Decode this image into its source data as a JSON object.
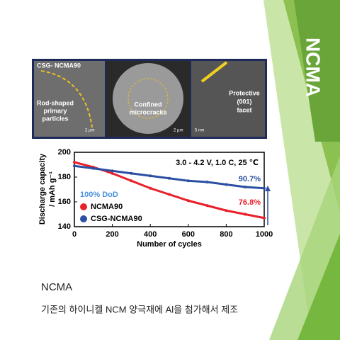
{
  "slide": {
    "side_title": "NCMA",
    "caption_title": "NCMA",
    "caption_text": "기존의 하이니켈 NCM 양극재에 Al을 첨가해서 제조"
  },
  "micrograph": {
    "sample": "CSG- NCMA90",
    "label_1": [
      "Rod-shaped",
      "primary",
      "particles"
    ],
    "label_2": [
      "Confined",
      "microcracks"
    ],
    "label_3": [
      "Protective",
      "(001)",
      "facet"
    ],
    "scale_1": "2 µm",
    "scale_2": "2 µm",
    "scale_3": "5 nm"
  },
  "chart_data": {
    "type": "line",
    "xlabel": "Number of cycles",
    "ylabel": [
      "Discharge capacity",
      "/ mAh g⁻¹"
    ],
    "x": [
      0,
      100,
      200,
      300,
      400,
      500,
      600,
      700,
      800,
      900,
      1000
    ],
    "series": [
      {
        "name": "NCMA90",
        "color": "#e8202a",
        "values": [
          192,
          188,
          183,
          177,
          171,
          166,
          161,
          157,
          153,
          150,
          147
        ]
      },
      {
        "name": "CSG-NCMA90",
        "color": "#2d4fa3",
        "values": [
          189,
          187,
          185,
          183,
          181,
          179,
          177,
          176,
          174,
          172,
          171
        ]
      }
    ],
    "annotations": [
      {
        "text": "3.0 - 4.2 V, 1.0 C, 25 ℃",
        "color": "#000000"
      },
      {
        "text": "90.7%",
        "color": "#2d4fa3"
      },
      {
        "text": "76.8%",
        "color": "#e8202a"
      },
      {
        "text": "100% DoD",
        "color": "#4a90d9"
      }
    ],
    "xlim": [
      0,
      1000
    ],
    "xticks": [
      0,
      200,
      400,
      600,
      800,
      1000
    ],
    "ylim": [
      140,
      200
    ],
    "yticks": [
      140,
      160,
      180,
      200
    ]
  }
}
